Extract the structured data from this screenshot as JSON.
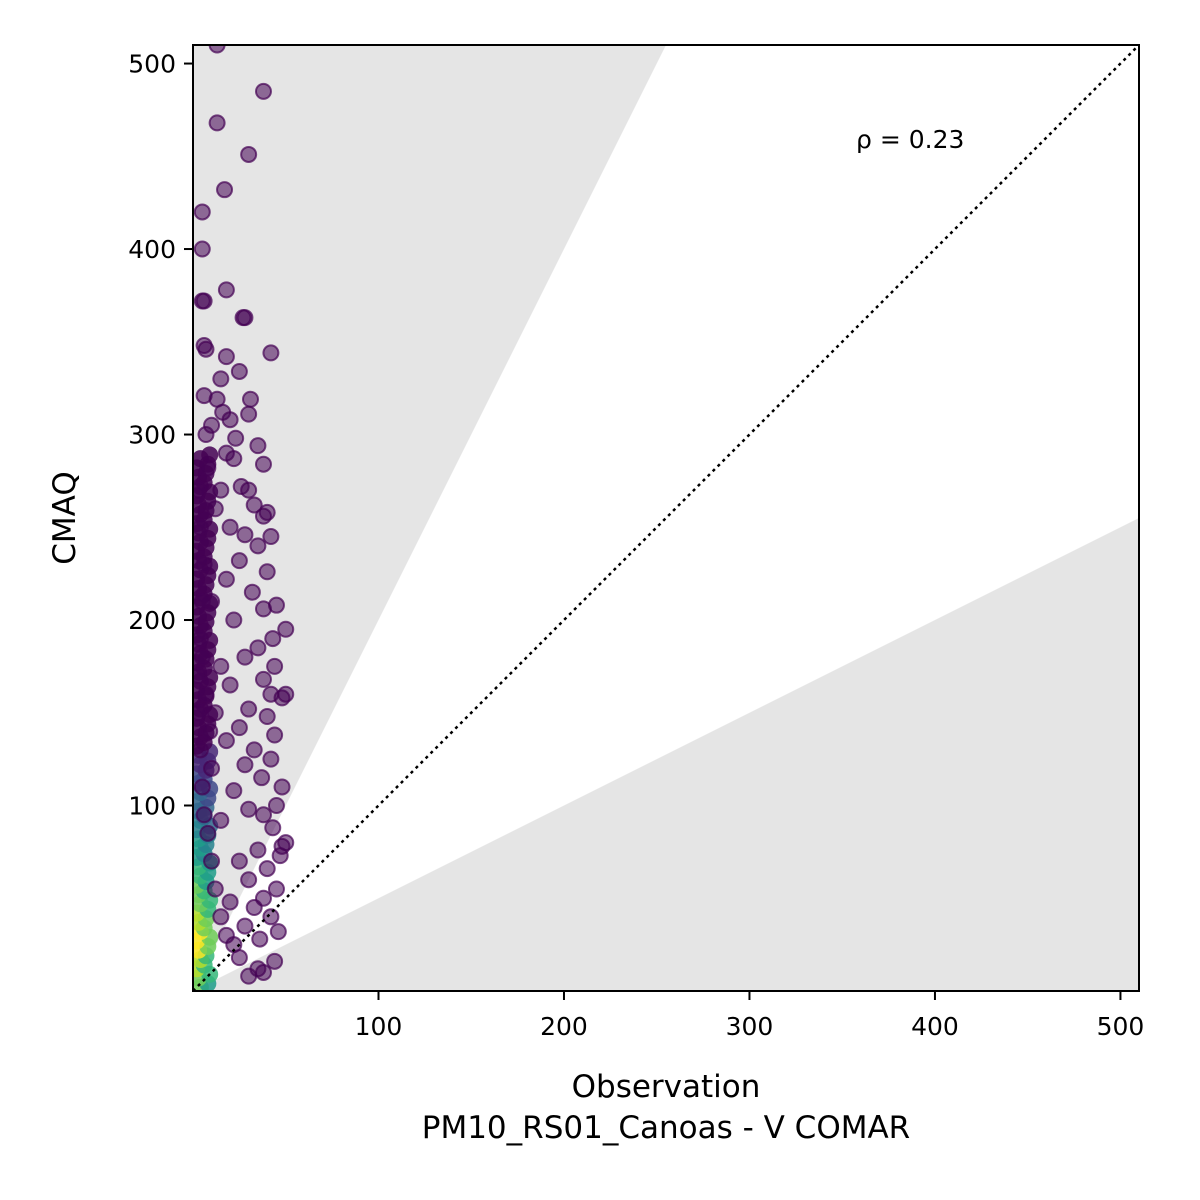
{
  "chart_data": {
    "type": "scatter",
    "title": "",
    "xlabel": "Observation",
    "subtitle": "PM10_RS01_Canoas - V COMAR",
    "ylabel": "CMAQ",
    "xlim": [
      0,
      510
    ],
    "ylim": [
      0,
      510
    ],
    "xticks": [
      100,
      200,
      300,
      400,
      500
    ],
    "yticks": [
      100,
      200,
      300,
      400,
      500
    ],
    "grid": false,
    "annotation": "ρ = 0.23",
    "reference_line": {
      "slope": 1,
      "style": "dotted",
      "color": "#000000"
    },
    "shaded_region_colors": {
      "outside_factor_band": "#e5e5e5"
    },
    "colormap": "viridis",
    "point_color": "#440154",
    "points": [
      [
        13,
        510
      ],
      [
        38,
        485
      ],
      [
        13,
        468
      ],
      [
        30,
        451
      ],
      [
        17,
        432
      ],
      [
        5,
        420
      ],
      [
        5,
        400
      ],
      [
        5,
        372
      ],
      [
        6,
        372
      ],
      [
        18,
        378
      ],
      [
        27,
        363
      ],
      [
        28,
        363
      ],
      [
        42,
        344
      ],
      [
        6,
        348
      ],
      [
        7,
        346
      ],
      [
        18,
        342
      ],
      [
        25,
        334
      ],
      [
        15,
        330
      ],
      [
        6,
        321
      ],
      [
        13,
        319
      ],
      [
        31,
        319
      ],
      [
        16,
        312
      ],
      [
        20,
        308
      ],
      [
        30,
        311
      ],
      [
        35,
        294
      ],
      [
        23,
        298
      ],
      [
        38,
        284
      ],
      [
        7,
        300
      ],
      [
        10,
        305
      ],
      [
        18,
        290
      ],
      [
        22,
        287
      ],
      [
        8,
        282
      ],
      [
        26,
        272
      ],
      [
        30,
        270
      ],
      [
        40,
        258
      ],
      [
        38,
        256
      ],
      [
        33,
        262
      ],
      [
        15,
        270
      ],
      [
        12,
        260
      ],
      [
        20,
        250
      ],
      [
        28,
        246
      ],
      [
        42,
        245
      ],
      [
        35,
        240
      ],
      [
        40,
        226
      ],
      [
        25,
        232
      ],
      [
        18,
        222
      ],
      [
        32,
        215
      ],
      [
        45,
        208
      ],
      [
        38,
        206
      ],
      [
        22,
        200
      ],
      [
        10,
        210
      ],
      [
        50,
        195
      ],
      [
        43,
        190
      ],
      [
        35,
        185
      ],
      [
        28,
        180
      ],
      [
        15,
        175
      ],
      [
        44,
        175
      ],
      [
        38,
        168
      ],
      [
        20,
        165
      ],
      [
        42,
        160
      ],
      [
        48,
        158
      ],
      [
        50,
        160
      ],
      [
        30,
        152
      ],
      [
        12,
        150
      ],
      [
        40,
        148
      ],
      [
        25,
        142
      ],
      [
        44,
        138
      ],
      [
        18,
        135
      ],
      [
        33,
        130
      ],
      [
        42,
        125
      ],
      [
        28,
        122
      ],
      [
        10,
        120
      ],
      [
        37,
        115
      ],
      [
        48,
        110
      ],
      [
        22,
        108
      ],
      [
        45,
        100
      ],
      [
        30,
        98
      ],
      [
        38,
        95
      ],
      [
        15,
        92
      ],
      [
        43,
        88
      ],
      [
        50,
        80
      ],
      [
        48,
        78
      ],
      [
        35,
        76
      ],
      [
        47,
        73
      ],
      [
        25,
        70
      ],
      [
        40,
        66
      ],
      [
        30,
        60
      ],
      [
        45,
        55
      ],
      [
        38,
        50
      ],
      [
        20,
        48
      ],
      [
        33,
        45
      ],
      [
        42,
        40
      ],
      [
        28,
        35
      ],
      [
        46,
        32
      ],
      [
        36,
        28
      ],
      [
        44,
        16
      ],
      [
        35,
        12
      ],
      [
        38,
        10
      ],
      [
        25,
        18
      ],
      [
        30,
        8
      ],
      [
        22,
        25
      ],
      [
        18,
        30
      ],
      [
        15,
        40
      ],
      [
        12,
        55
      ],
      [
        10,
        70
      ],
      [
        8,
        85
      ],
      [
        6,
        95
      ],
      [
        5,
        110
      ],
      [
        4,
        130
      ],
      [
        3,
        150
      ],
      [
        3,
        170
      ],
      [
        4,
        190
      ],
      [
        5,
        210
      ],
      [
        6,
        230
      ],
      [
        4,
        250
      ],
      [
        3,
        270
      ],
      [
        5,
        180
      ],
      [
        7,
        160
      ],
      [
        9,
        140
      ]
    ]
  }
}
